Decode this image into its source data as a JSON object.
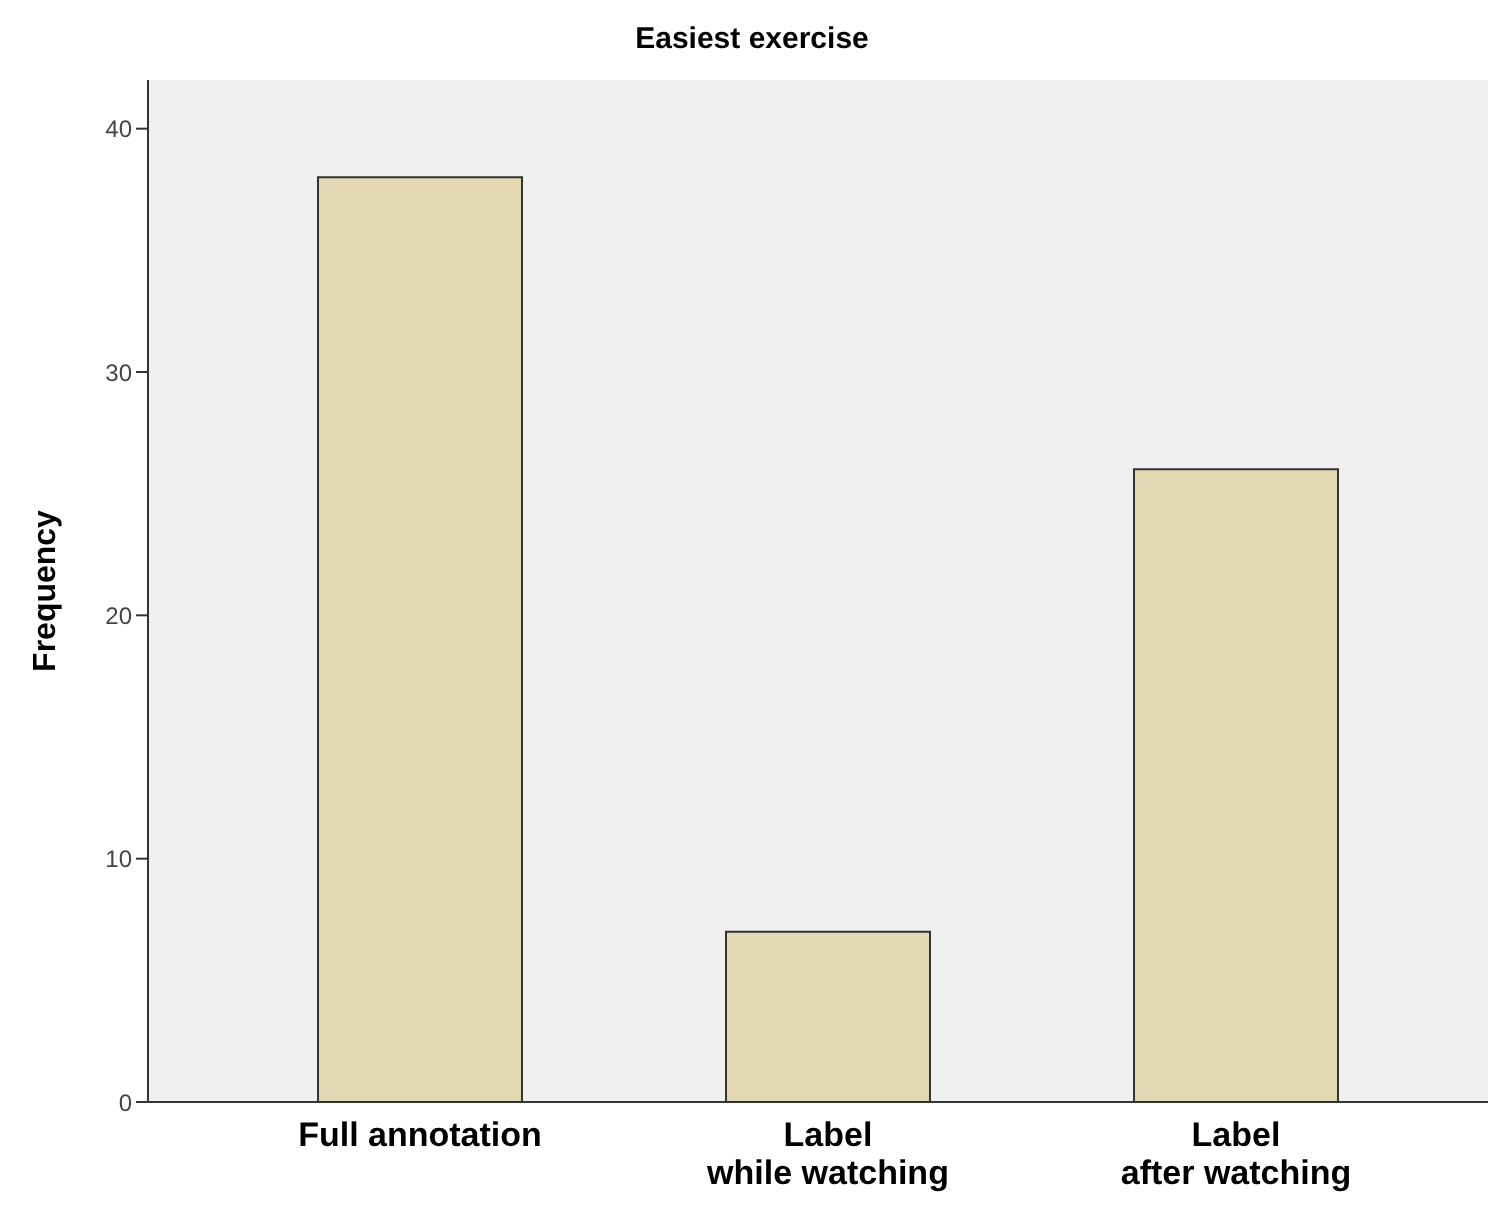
{
  "chart_data": {
    "type": "bar",
    "title": "Easiest exercise",
    "ylabel": "Frequency",
    "categories": [
      "Full annotation",
      "Label\nwhile watching",
      "Label\nafter watching"
    ],
    "values": [
      38,
      7,
      26
    ],
    "color": "#e2d9b4",
    "ylim": [
      0,
      42
    ],
    "yticks": [
      0,
      10,
      20,
      30,
      40
    ]
  }
}
